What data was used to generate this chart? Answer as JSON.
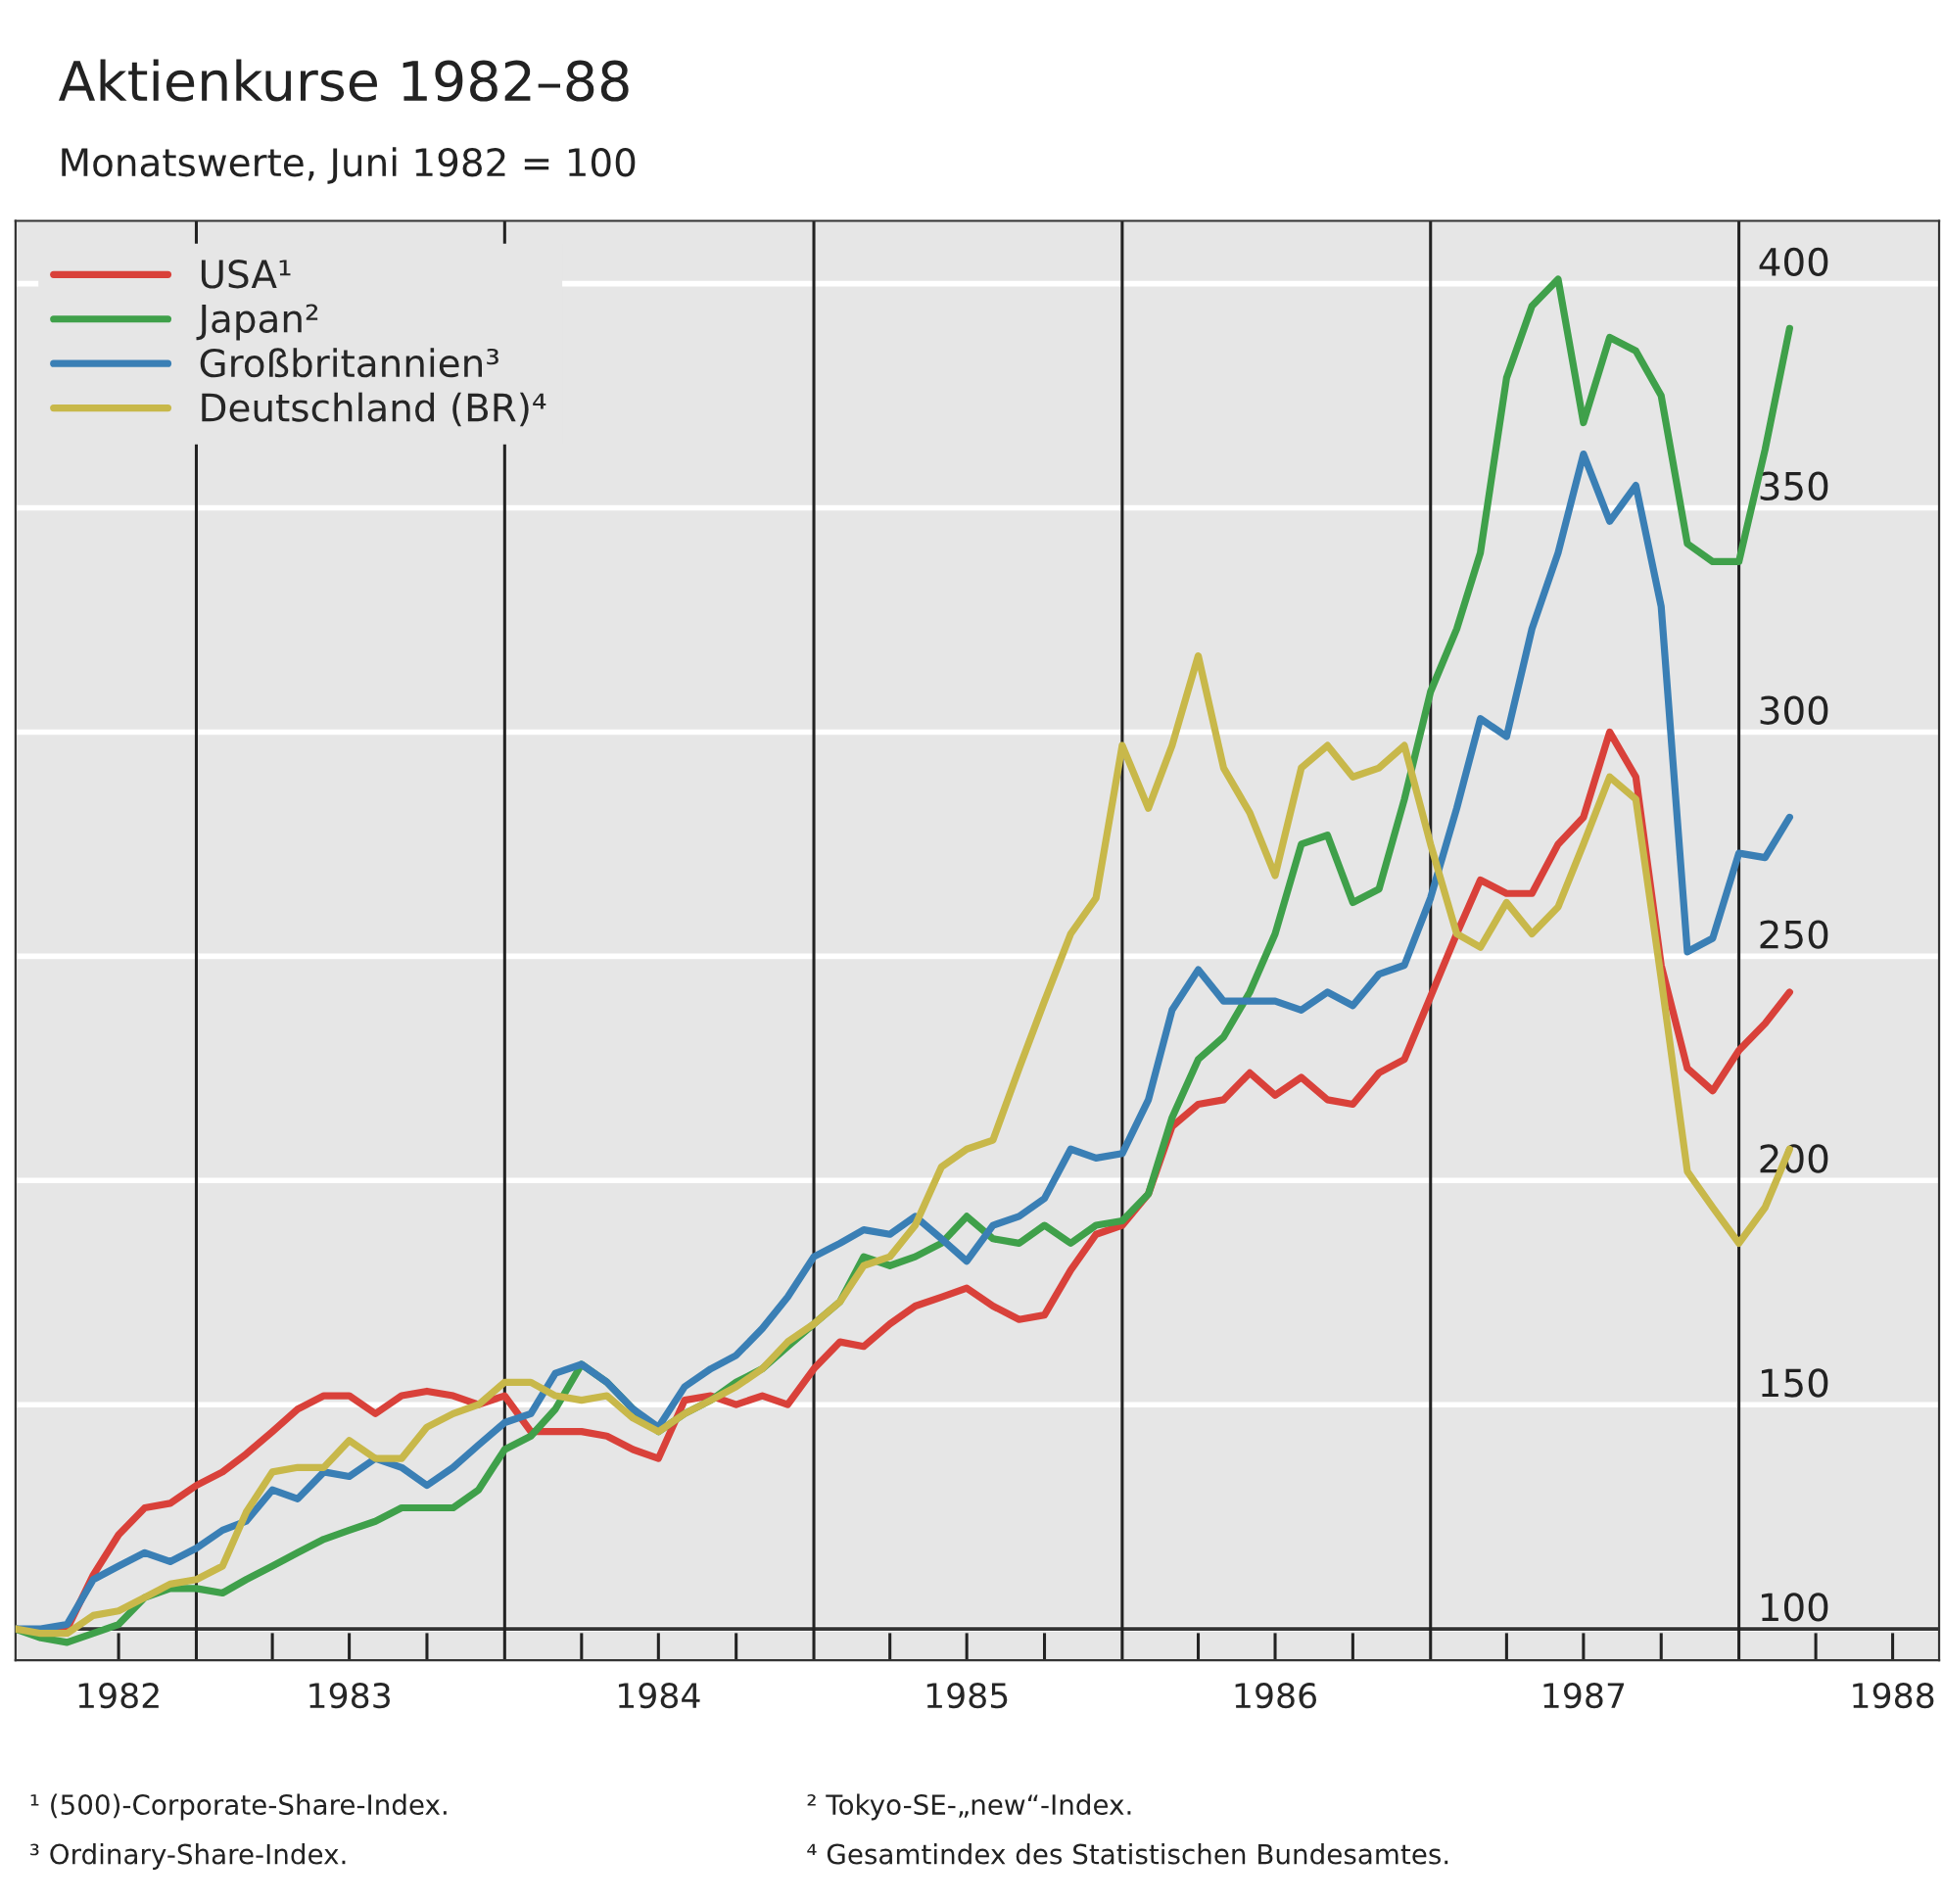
{
  "chart_data": {
    "type": "line",
    "title": "Aktienkurse 1982–88",
    "subtitle": "Monatswerte, Juni 1982 = 100",
    "x": [
      "1982-06",
      "1982-07",
      "1982-08",
      "1982-09",
      "1982-10",
      "1982-11",
      "1982-12",
      "1983-01",
      "1983-02",
      "1983-03",
      "1983-04",
      "1983-05",
      "1983-06",
      "1983-07",
      "1983-08",
      "1983-09",
      "1983-10",
      "1983-11",
      "1983-12",
      "1984-01",
      "1984-02",
      "1984-03",
      "1984-04",
      "1984-05",
      "1984-06",
      "1984-07",
      "1984-08",
      "1984-09",
      "1984-10",
      "1984-11",
      "1984-12",
      "1985-01",
      "1985-02",
      "1985-03",
      "1985-04",
      "1985-05",
      "1985-06",
      "1985-07",
      "1985-08",
      "1985-09",
      "1985-10",
      "1985-11",
      "1985-12",
      "1986-01",
      "1986-02",
      "1986-03",
      "1986-04",
      "1986-05",
      "1986-06",
      "1986-07",
      "1986-08",
      "1986-09",
      "1986-10",
      "1986-11",
      "1986-12",
      "1987-01",
      "1987-02",
      "1987-03",
      "1987-04",
      "1987-05",
      "1987-06",
      "1987-07",
      "1987-08",
      "1987-09",
      "1987-10",
      "1987-11",
      "1987-12",
      "1988-01",
      "1988-02",
      "1988-03"
    ],
    "series": [
      {
        "name": "USA¹",
        "color": "#d9413a",
        "values": [
          100,
          99,
          100,
          112,
          121,
          127,
          128,
          132,
          135,
          139,
          144,
          149,
          152,
          152,
          148,
          152,
          153,
          152,
          150,
          152,
          144,
          144,
          144,
          143,
          140,
          138,
          151,
          152,
          150,
          152,
          150,
          158,
          164,
          163,
          168,
          172,
          174,
          176,
          172,
          169,
          170,
          180,
          188,
          190,
          197,
          212,
          217,
          218,
          224,
          219,
          223,
          218,
          217,
          224,
          227,
          241,
          255,
          267,
          264,
          264,
          275,
          281,
          300,
          290,
          248,
          225,
          220,
          229,
          235,
          242
        ]
      },
      {
        "name": "Japan²",
        "color": "#3fa04a",
        "values": [
          100,
          98,
          97,
          99,
          101,
          107,
          109,
          109,
          108,
          111,
          114,
          117,
          120,
          122,
          124,
          127,
          127,
          127,
          131,
          140,
          143,
          149,
          159,
          155,
          149,
          144,
          148,
          151,
          155,
          158,
          163,
          168,
          173,
          183,
          181,
          183,
          186,
          192,
          187,
          186,
          190,
          186,
          190,
          191,
          197,
          214,
          227,
          232,
          242,
          255,
          275,
          277,
          262,
          265,
          285,
          309,
          323,
          340,
          379,
          395,
          401,
          369,
          388,
          385,
          375,
          342,
          338,
          338,
          363,
          390
        ]
      },
      {
        "name": "Großbritannien³",
        "color": "#3a7fb5",
        "values": [
          100,
          100,
          101,
          111,
          114,
          117,
          115,
          118,
          122,
          124,
          131,
          129,
          135,
          134,
          138,
          136,
          132,
          136,
          141,
          146,
          148,
          157,
          159,
          155,
          149,
          145,
          154,
          158,
          161,
          167,
          174,
          183,
          186,
          189,
          188,
          192,
          187,
          182,
          190,
          192,
          196,
          207,
          205,
          206,
          218,
          238,
          247,
          240,
          240,
          240,
          238,
          242,
          239,
          246,
          248,
          263,
          283,
          303,
          299,
          323,
          340,
          362,
          347,
          355,
          328,
          251,
          254,
          273,
          272,
          281
        ]
      },
      {
        "name": "Deutschland (BR)⁴",
        "color": "#c8b84a",
        "values": [
          100,
          99,
          99,
          103,
          104,
          107,
          110,
          111,
          114,
          126,
          135,
          136,
          136,
          142,
          138,
          138,
          145,
          148,
          150,
          155,
          155,
          152,
          151,
          152,
          147,
          144,
          148,
          151,
          154,
          158,
          164,
          168,
          173,
          181,
          183,
          190,
          203,
          207,
          209,
          225,
          240,
          255,
          263,
          297,
          283,
          297,
          317,
          292,
          282,
          268,
          292,
          297,
          290,
          292,
          297,
          275,
          255,
          252,
          262,
          255,
          261,
          275,
          290,
          285,
          245,
          202,
          194,
          186,
          194,
          207
        ]
      }
    ],
    "xlim": [
      "1982-06-01",
      "1988-08-25"
    ],
    "xticks": [
      {
        "value": "1982-10",
        "label": "1982"
      },
      {
        "value": "1983-04",
        "label": null
      },
      {
        "value": "1983-07",
        "label": "1983"
      },
      {
        "value": "1983-10",
        "label": null
      },
      {
        "value": "1984-04",
        "label": null
      },
      {
        "value": "1984-07",
        "label": "1984"
      },
      {
        "value": "1984-10",
        "label": null
      },
      {
        "value": "1985-04",
        "label": null
      },
      {
        "value": "1985-07",
        "label": "1985"
      },
      {
        "value": "1985-10",
        "label": null
      },
      {
        "value": "1986-04",
        "label": null
      },
      {
        "value": "1986-07",
        "label": "1986"
      },
      {
        "value": "1986-10",
        "label": null
      },
      {
        "value": "1987-04",
        "label": null
      },
      {
        "value": "1987-07",
        "label": "1987"
      },
      {
        "value": "1987-10",
        "label": null
      },
      {
        "value": "1988-04",
        "label": null
      },
      {
        "value": "1988-07",
        "label": "1988"
      }
    ],
    "ylim": [
      93,
      414
    ],
    "yticks": [
      100,
      150,
      200,
      250,
      300,
      350,
      400
    ],
    "ref_lines": [
      {
        "axis": "y",
        "value": 100,
        "color": "#333333"
      },
      {
        "axis": "x",
        "value": "1983-01-01",
        "color": "#222222"
      },
      {
        "axis": "x",
        "value": "1984-01-01",
        "color": "#222222"
      },
      {
        "axis": "x",
        "value": "1985-01-01",
        "color": "#222222"
      },
      {
        "axis": "x",
        "value": "1986-01-01",
        "color": "#222222"
      },
      {
        "axis": "x",
        "value": "1987-01-01",
        "color": "#222222"
      },
      {
        "axis": "x",
        "value": "1988-01-01",
        "color": "#222222"
      }
    ],
    "grid": "y",
    "legend": "top left",
    "marker": "none",
    "line_style": "solid",
    "annotations": [
      "¹ (500)-Corporate-Share-Index.",
      "² Tokyo-SE-„new“-Index.",
      "³ Ordinary-Share-Index.",
      "⁴ Gesamtindex des Statistischen Bundesamtes."
    ]
  }
}
